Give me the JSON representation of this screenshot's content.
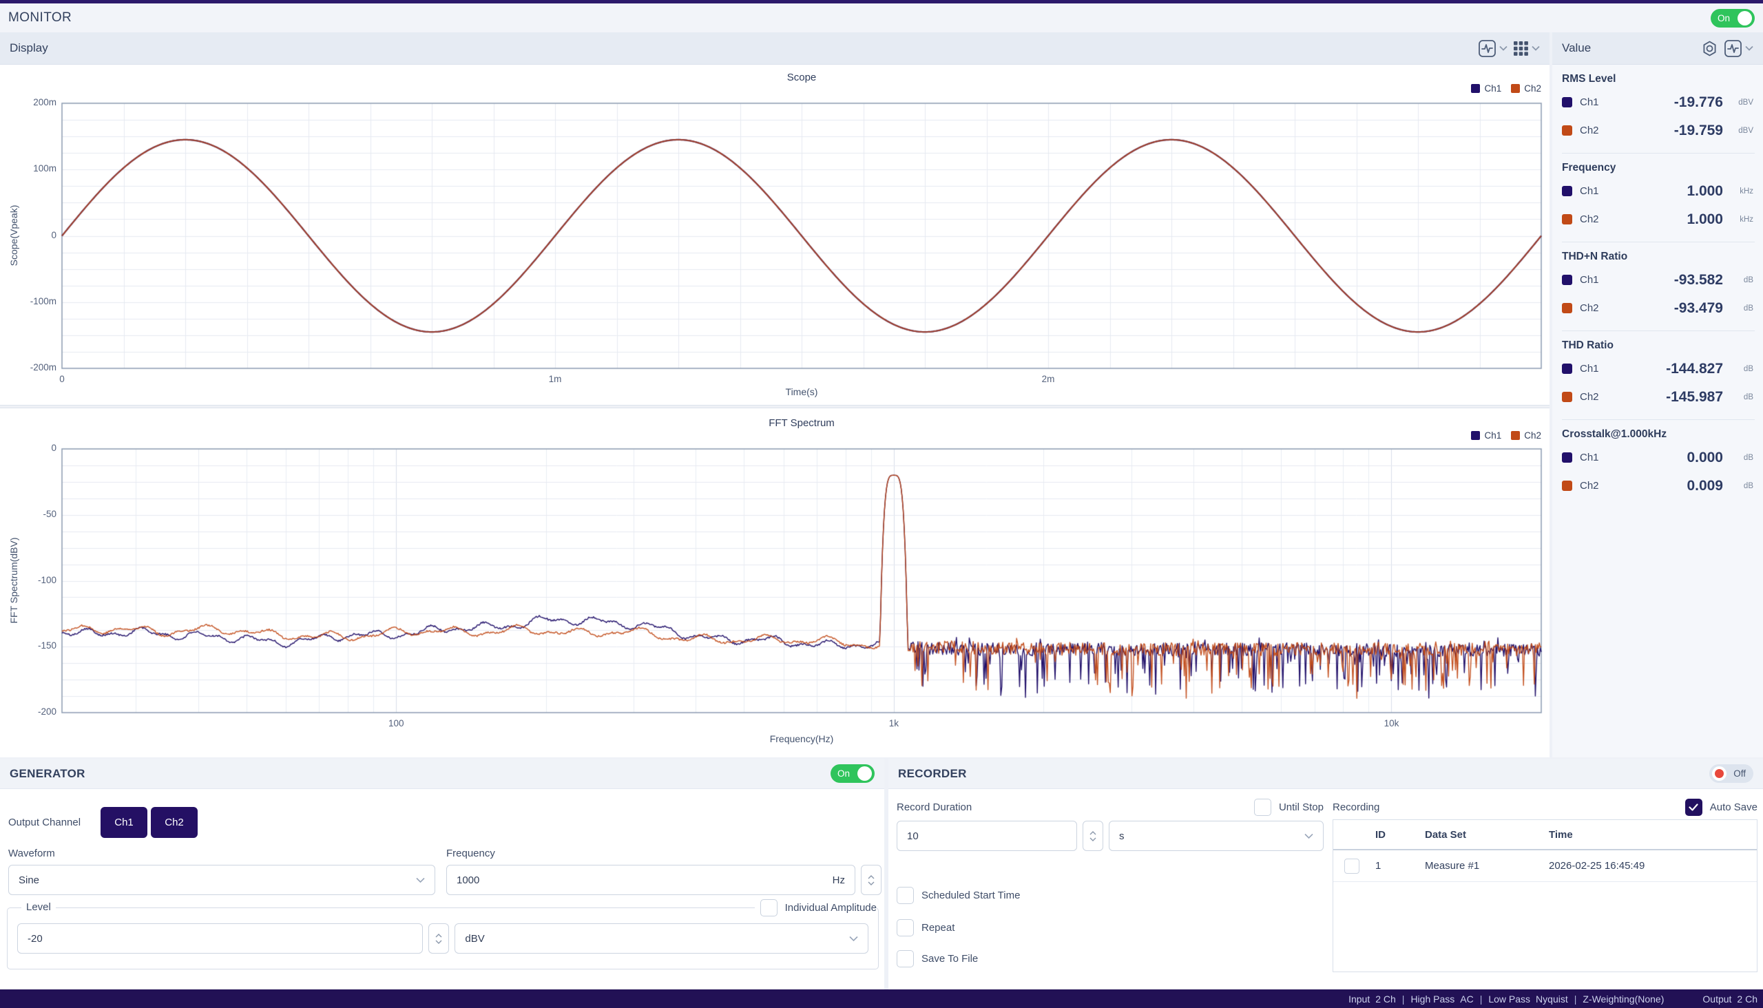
{
  "colors": {
    "ch1": "#21106a",
    "ch2": "#c14a17",
    "toggle_on": "#2fc45c",
    "toggle_off_knob": "#e8483c",
    "accent": "#221060"
  },
  "app": {
    "title": "MONITOR",
    "monitor_toggle_label": "On"
  },
  "display": {
    "title": "Display"
  },
  "value_panel": {
    "title": "Value",
    "sections": [
      {
        "name": "RMS Level",
        "rows": [
          {
            "ch": "Ch1",
            "value": "-19.776",
            "unit": "dBV"
          },
          {
            "ch": "Ch2",
            "value": "-19.759",
            "unit": "dBV"
          }
        ]
      },
      {
        "name": "Frequency",
        "rows": [
          {
            "ch": "Ch1",
            "value": "1.000",
            "unit": "kHz"
          },
          {
            "ch": "Ch2",
            "value": "1.000",
            "unit": "kHz"
          }
        ]
      },
      {
        "name": "THD+N Ratio",
        "rows": [
          {
            "ch": "Ch1",
            "value": "-93.582",
            "unit": "dB"
          },
          {
            "ch": "Ch2",
            "value": "-93.479",
            "unit": "dB"
          }
        ]
      },
      {
        "name": "THD Ratio",
        "rows": [
          {
            "ch": "Ch1",
            "value": "-144.827",
            "unit": "dB"
          },
          {
            "ch": "Ch2",
            "value": "-145.987",
            "unit": "dB"
          }
        ]
      },
      {
        "name": "Crosstalk@1.000kHz",
        "rows": [
          {
            "ch": "Ch1",
            "value": "0.000",
            "unit": "dB"
          },
          {
            "ch": "Ch2",
            "value": "0.009",
            "unit": "dB"
          }
        ]
      }
    ]
  },
  "generator": {
    "title": "GENERATOR",
    "toggle_label": "On",
    "output_channel_label": "Output Channel",
    "channels": [
      "Ch1",
      "Ch2"
    ],
    "waveform_label": "Waveform",
    "waveform_value": "Sine",
    "frequency_label": "Frequency",
    "frequency_value": "1000",
    "frequency_unit": "Hz",
    "level_label": "Level",
    "level_value": "-20",
    "level_unit_value": "dBV",
    "individual_amplitude_label": "Individual Amplitude"
  },
  "recorder": {
    "title": "RECORDER",
    "toggle_label": "Off",
    "record_duration_label": "Record Duration",
    "duration_value": "10",
    "duration_unit": "s",
    "until_stop_label": "Until Stop",
    "checkboxes": [
      "Scheduled Start Time",
      "Repeat",
      "Save To File"
    ],
    "recording_label": "Recording",
    "auto_save_label": "Auto Save",
    "table": {
      "headers": [
        "ID",
        "Data Set",
        "Time"
      ],
      "rows": [
        {
          "id": "1",
          "data_set": "Measure #1",
          "time": "2026-02-25 16:45:49"
        }
      ]
    }
  },
  "status_bar": {
    "separator": "|",
    "groups": [
      {
        "label": "Input",
        "value": "2 Ch"
      },
      {
        "label": "High Pass",
        "value": "AC"
      },
      {
        "label": "Low Pass",
        "value": "Nyquist"
      },
      {
        "label": "Z-Weighting(None)",
        "value": ""
      }
    ],
    "output": {
      "label": "Output",
      "value": "2 Ch"
    }
  },
  "chart_data": [
    {
      "type": "line",
      "title": "Scope",
      "xlabel": "Time(s)",
      "ylabel": "Scope(Vpeak)",
      "legend": [
        "Ch1",
        "Ch2"
      ],
      "x_range_s": [
        0,
        0.003
      ],
      "ylim": [
        -0.2,
        0.2
      ],
      "xticks": [
        {
          "v": 0,
          "label": "0"
        },
        {
          "v": 0.001,
          "label": "1m"
        },
        {
          "v": 0.002,
          "label": "2m"
        }
      ],
      "yticks": [
        {
          "v": 0.2,
          "label": "200m"
        },
        {
          "v": 0.1,
          "label": "100m"
        },
        {
          "v": 0,
          "label": "0"
        },
        {
          "v": -0.1,
          "label": "-100m"
        },
        {
          "v": -0.2,
          "label": "-200m"
        }
      ],
      "grid": {
        "minor_x_s": 0.000125,
        "minor_y_v": 0.025
      },
      "series": [
        {
          "name": "Ch1",
          "waveform": "sine",
          "amplitude_vpeak": 0.145,
          "frequency_hz": 1000,
          "phase_deg": 0
        },
        {
          "name": "Ch2",
          "waveform": "sine",
          "amplitude_vpeak": 0.145,
          "frequency_hz": 1000,
          "phase_deg": 0
        }
      ]
    },
    {
      "type": "line",
      "title": "FFT Spectrum",
      "xlabel": "Frequency(Hz)",
      "ylabel": "FFT Spectrum(dBV)",
      "legend": [
        "Ch1",
        "Ch2"
      ],
      "x_scale": "log",
      "x_range_hz": [
        21.3,
        20000
      ],
      "ylim": [
        -200,
        0
      ],
      "xticks": [
        {
          "v": 100,
          "label": "100"
        },
        {
          "v": 1000,
          "label": "1k"
        },
        {
          "v": 10000,
          "label": "10k"
        }
      ],
      "yticks": [
        {
          "v": 0,
          "label": "0"
        },
        {
          "v": -50,
          "label": "-50"
        },
        {
          "v": -100,
          "label": "-100"
        },
        {
          "v": -150,
          "label": "-150"
        },
        {
          "v": -200,
          "label": "-200"
        }
      ],
      "grid": {
        "minor_y_db": 12.5,
        "log_decades": true
      },
      "series": [
        {
          "name": "Ch1",
          "peak": {
            "freq_hz": 1000,
            "level_dbv": -20
          },
          "noise_envelope": [
            [
              21,
              -138.5
            ],
            [
              40,
              -141
            ],
            [
              55,
              -146.5
            ],
            [
              90,
              -141
            ],
            [
              140,
              -136
            ],
            [
              200,
              -130.5
            ],
            [
              260,
              -130
            ],
            [
              320,
              -135
            ],
            [
              400,
              -142
            ],
            [
              500,
              -145
            ],
            [
              650,
              -147
            ],
            [
              800,
              -149
            ],
            [
              950,
              -150
            ],
            [
              1100,
              -151
            ],
            [
              1500,
              -152
            ],
            [
              3000,
              -152
            ],
            [
              6000,
              -152
            ],
            [
              12000,
              -153
            ],
            [
              20000,
              -153
            ]
          ]
        },
        {
          "name": "Ch2",
          "peak": {
            "freq_hz": 1000,
            "level_dbv": -20
          },
          "noise_envelope": [
            [
              21,
              -137
            ],
            [
              50,
              -138
            ],
            [
              70,
              -143.5
            ],
            [
              100,
              -139
            ],
            [
              150,
              -138
            ],
            [
              220,
              -138.5
            ],
            [
              300,
              -139.5
            ],
            [
              380,
              -143
            ],
            [
              480,
              -146
            ],
            [
              600,
              -143.5
            ],
            [
              750,
              -147
            ],
            [
              900,
              -149
            ],
            [
              1100,
              -150
            ],
            [
              1500,
              -151
            ],
            [
              3000,
              -152
            ],
            [
              20000,
              -152
            ]
          ]
        }
      ]
    }
  ]
}
